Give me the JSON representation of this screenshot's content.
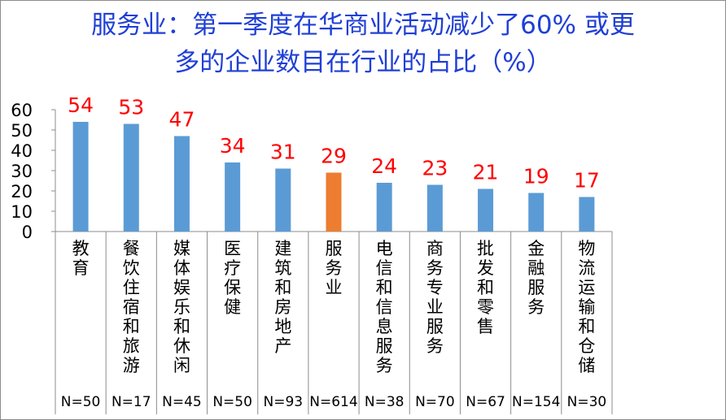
{
  "chart_data": {
    "type": "bar",
    "title_lines": [
      "服务业：第一季度在华商业活动减少了60% 或更",
      "多的企业数目在行业的占比（%）"
    ],
    "categories": [
      "教育",
      "餐饮住宿和旅游",
      "媒体娱乐和休闲",
      "医疗保健",
      "建筑和房地产",
      "服务业",
      "电信和信息服务",
      "商务专业服务",
      "批发和零售",
      "金融服务",
      "物流运输和仓储"
    ],
    "values": [
      54,
      53,
      47,
      34,
      31,
      29,
      24,
      23,
      21,
      19,
      17
    ],
    "n_labels": [
      "N=50",
      "N=17",
      "N=45",
      "N=50",
      "N=93",
      "N=614",
      "N=38",
      "N=70",
      "N=67",
      "N=154",
      "N=30"
    ],
    "highlight_category": "服务业",
    "ylim": [
      0,
      60
    ],
    "yticks": [
      0,
      10,
      20,
      30,
      40,
      50,
      60
    ],
    "grid": false,
    "legend": "none",
    "colors": {
      "bar": "#5b9bd5",
      "highlight_bar": "#ed7d31",
      "data_label": "#ff0000",
      "title": "#1f3fd6",
      "axis_text": "#000000",
      "axis_line": "#8c8c8c"
    }
  }
}
